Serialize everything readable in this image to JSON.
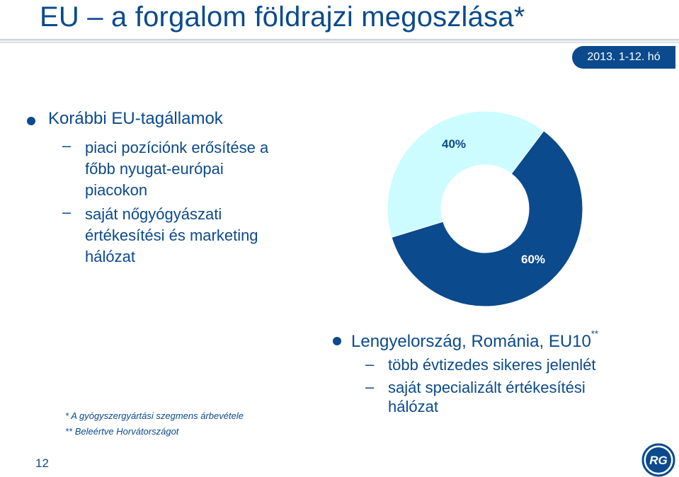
{
  "slide": {
    "title": "EU – a forgalom földrajzi megoszlása*",
    "date_badge": "2013. 1-12. hó",
    "page_number": "12"
  },
  "section_left": {
    "heading": "Korábbi EU-tagállamok",
    "items": [
      {
        "lines": [
          "piaci pozíciónk erősítése a",
          "főbb nyugat-európai",
          "piacokon"
        ]
      },
      {
        "lines": [
          "saját nőgyógyászati",
          "értékesítési és marketing",
          "hálózat"
        ]
      }
    ]
  },
  "section_right": {
    "heading": "Lengyelország, Románia, EU10",
    "heading_sup": "**",
    "items": [
      {
        "lines": [
          "több évtizedes sikeres jelenlét"
        ]
      },
      {
        "lines": [
          "saját specializált értékesítési",
          "hálózat"
        ]
      }
    ]
  },
  "chart_data": {
    "type": "pie",
    "donut": true,
    "slices": [
      {
        "label": "40%",
        "value": 40,
        "color": "#ccfcff"
      },
      {
        "label": "60%",
        "value": 60,
        "color": "#0b4a8c"
      }
    ]
  },
  "footnotes": [
    "* A gyógyszergyártási szegmens árbevétele",
    "** Beleértve Horvátországot"
  ],
  "logo": {
    "icon": "richter-logo-icon",
    "text": "RG",
    "color": "#0b4a8c"
  }
}
